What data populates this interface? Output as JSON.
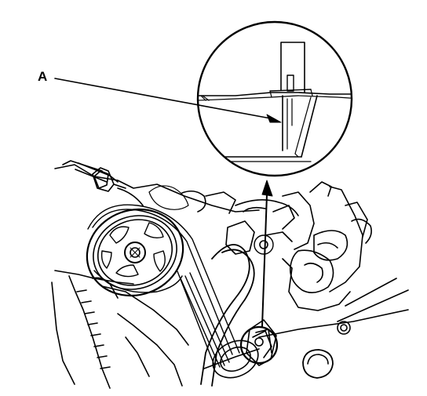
{
  "callout": {
    "label": "A"
  },
  "colors": {
    "ink": "#000000",
    "paper": "#ffffff"
  }
}
